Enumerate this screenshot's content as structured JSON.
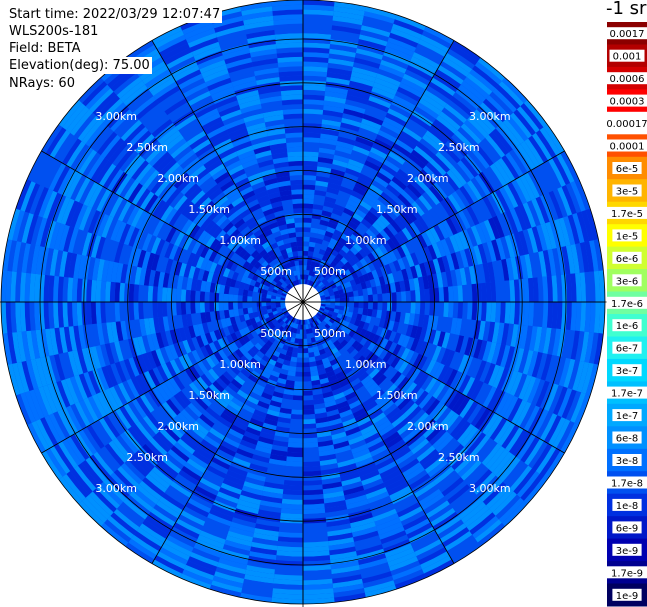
{
  "header": {
    "start_time": "Start time: 2022/03/29 12:07:47",
    "instrument": "WLS200s-181",
    "field": "Field: BETA",
    "elevation": "Elevation(deg): 75.00",
    "nrays": "NRays: 60"
  },
  "colorbar": {
    "title": "-1 sr",
    "labels": [
      "0.0017",
      "0.001",
      "0.0006",
      "0.0003",
      "0.00017",
      "0.0001",
      "6e-5",
      "3e-5",
      "1.7e-5",
      "1e-5",
      "6e-6",
      "3e-6",
      "1.7e-6",
      "1e-6",
      "6e-7",
      "3e-7",
      "1.7e-7",
      "1e-7",
      "6e-8",
      "3e-8",
      "1.7e-8",
      "1e-8",
      "6e-9",
      "3e-9",
      "1.7e-9",
      "1e-9"
    ],
    "colors": [
      "#8b0000",
      "#b30000",
      "#d40000",
      "#ff0000",
      "#ffffff",
      "#ff5000",
      "#ff8c00",
      "#ffb400",
      "#ffd700",
      "#ffff00",
      "#d0ff30",
      "#a0ff60",
      "#70ffa0",
      "#40ffd0",
      "#20f0f0",
      "#00d8ff",
      "#00c0ff",
      "#00a8ff",
      "#0090ff",
      "#0070ff",
      "#0050f0",
      "#0030e0",
      "#0018c8",
      "#0000b0",
      "#000090",
      "#000060"
    ]
  },
  "chart_data": {
    "type": "heatmap",
    "projection": "polar",
    "field": "BETA",
    "units": "sr-1",
    "n_rays": 60,
    "elevation_deg": 75.0,
    "range_rings_km": [
      0.5,
      1.0,
      1.5,
      2.0,
      2.5,
      3.0
    ],
    "ring_labels": [
      "500m",
      "1.00km",
      "1.50km",
      "2.00km",
      "2.50km",
      "3.00km"
    ],
    "azimuth_grid_deg": [
      0,
      30,
      60,
      90,
      120,
      150,
      180,
      210,
      240,
      270,
      300,
      330
    ],
    "value_range_typical": [
      "1e-8",
      "6e-8"
    ],
    "description_scale": "log"
  }
}
